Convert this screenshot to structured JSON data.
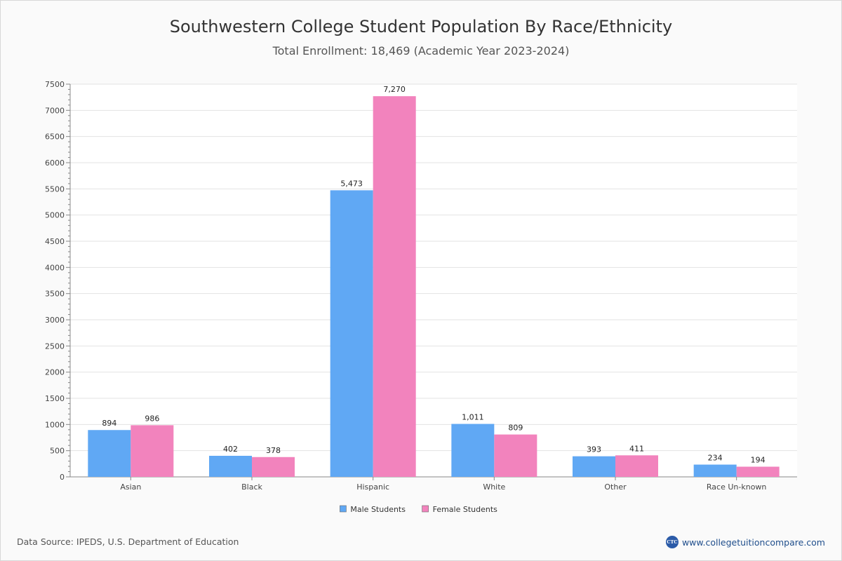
{
  "chart_data": {
    "type": "bar",
    "title": "Southwestern College Student Population By Race/Ethnicity",
    "subtitle": "Total Enrollment: 18,469 (Academic Year 2023-2024)",
    "categories": [
      "Asian",
      "Black",
      "Hispanic",
      "White",
      "Other",
      "Race Un-known"
    ],
    "series": [
      {
        "name": "Male Students",
        "color": "#60a8f4",
        "values": [
          894,
          402,
          5473,
          1011,
          393,
          234
        ],
        "labels": [
          "894",
          "402",
          "5,473",
          "1,011",
          "393",
          "234"
        ]
      },
      {
        "name": "Female Students",
        "color": "#f283bd",
        "values": [
          986,
          378,
          7270,
          809,
          411,
          194
        ],
        "labels": [
          "986",
          "378",
          "7,270",
          "809",
          "411",
          "194"
        ]
      }
    ],
    "ylim": [
      0,
      7500
    ],
    "yticks": [
      0,
      500,
      1000,
      1500,
      2000,
      2500,
      3000,
      3500,
      4000,
      4500,
      5000,
      5500,
      6000,
      6500,
      7000,
      7500
    ],
    "grid": true,
    "legend": "bottom-center",
    "xlabel": "",
    "ylabel": ""
  },
  "footer": {
    "source": "Data Source: IPEDS, U.S. Department of Education",
    "logo_text": "CTC",
    "site": "www.collegetuitioncompare.com"
  }
}
